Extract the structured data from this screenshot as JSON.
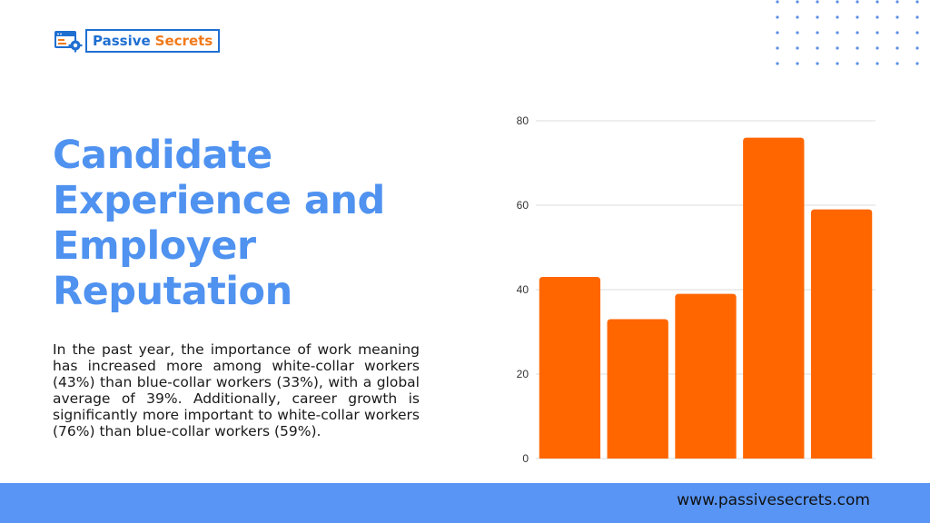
{
  "brand": {
    "name_primary": "Passive",
    "name_accent": "Secrets",
    "colors": {
      "blue": "#1f6fd1",
      "orange": "#f07a1a"
    },
    "icon": "browser-gear-icon"
  },
  "headline": {
    "lines": [
      "Candidate",
      "Experience and",
      "Employer",
      "Reputation"
    ],
    "color": "#4f92f0"
  },
  "description": "In the past year, the importance of work meaning has increased more among white-collar workers (43%) than blue-collar workers (33%), with a global average of 39%. Additionally, career growth is significantly more important to white-collar workers (76%) than blue-collar workers (59%).",
  "chart_data": {
    "type": "bar",
    "categories": [
      "",
      "",
      "",
      "",
      ""
    ],
    "values": [
      43,
      33,
      39,
      76,
      59
    ],
    "title": "",
    "xlabel": "",
    "ylabel": "",
    "ylim": [
      0,
      80
    ],
    "yticks": [
      0,
      20,
      40,
      60,
      80
    ],
    "grid": true,
    "bar_color": "#ff6600",
    "legend": "none"
  },
  "footer": {
    "url": "www.passivesecrets.com",
    "color": "#5895f5"
  },
  "decor": {
    "dot_color": "#5b8ee6"
  }
}
